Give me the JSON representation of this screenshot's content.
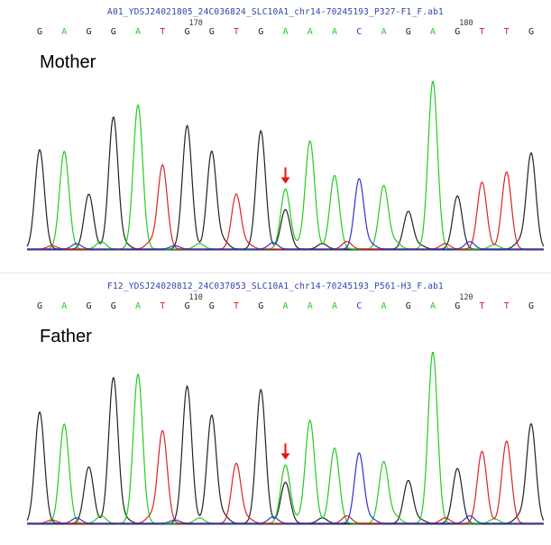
{
  "chart_data": [
    {
      "type": "line",
      "title": "A01_YDSJ24021805_24C036824_SLC10A1_chr14-70245193_P327-F1_F.ab1",
      "panel_label": "Mother",
      "bases": [
        "G",
        "A",
        "G",
        "G",
        "A",
        "T",
        "G",
        "G",
        "T",
        "G",
        "A",
        "A",
        "A",
        "C",
        "A",
        "G",
        "A",
        "G",
        "T",
        "T",
        "G"
      ],
      "position_labels": [
        {
          "index": 6,
          "text": "170"
        },
        {
          "index": 17,
          "text": "180"
        }
      ],
      "peaks": [
        {
          "base": "G",
          "height": 0.58
        },
        {
          "base": "A",
          "height": 0.57
        },
        {
          "base": "G",
          "height": 0.32
        },
        {
          "base": "G",
          "height": 0.77
        },
        {
          "base": "A",
          "height": 0.84
        },
        {
          "base": "T",
          "height": 0.49
        },
        {
          "base": "G",
          "height": 0.72
        },
        {
          "base": "G",
          "height": 0.57
        },
        {
          "base": "T",
          "height": 0.32
        },
        {
          "base": "G",
          "height": 0.69
        },
        {
          "base": "A",
          "height": 0.35,
          "secondary": {
            "base": "G",
            "height": 0.23
          }
        },
        {
          "base": "A",
          "height": 0.63
        },
        {
          "base": "A",
          "height": 0.43
        },
        {
          "base": "C",
          "height": 0.41
        },
        {
          "base": "A",
          "height": 0.37
        },
        {
          "base": "G",
          "height": 0.22
        },
        {
          "base": "A",
          "height": 0.98
        },
        {
          "base": "G",
          "height": 0.31
        },
        {
          "base": "T",
          "height": 0.39
        },
        {
          "base": "T",
          "height": 0.45
        },
        {
          "base": "G",
          "height": 0.56
        }
      ],
      "arrow_index": 10,
      "ylim": [
        0,
        1
      ]
    },
    {
      "type": "line",
      "title": "F12_YDSJ24020812_24C037053_SLC10A1_chr14-70245193_P561-H3_F.ab1",
      "panel_label": "Father",
      "bases": [
        "G",
        "A",
        "G",
        "G",
        "A",
        "T",
        "G",
        "G",
        "T",
        "G",
        "A",
        "A",
        "A",
        "C",
        "A",
        "G",
        "A",
        "G",
        "T",
        "T",
        "G"
      ],
      "position_labels": [
        {
          "index": 6,
          "text": "110"
        },
        {
          "index": 17,
          "text": "120"
        }
      ],
      "peaks": [
        {
          "base": "G",
          "height": 0.65
        },
        {
          "base": "A",
          "height": 0.58
        },
        {
          "base": "G",
          "height": 0.33
        },
        {
          "base": "G",
          "height": 0.85
        },
        {
          "base": "A",
          "height": 0.87
        },
        {
          "base": "T",
          "height": 0.54
        },
        {
          "base": "G",
          "height": 0.8
        },
        {
          "base": "G",
          "height": 0.63
        },
        {
          "base": "T",
          "height": 0.35
        },
        {
          "base": "G",
          "height": 0.78
        },
        {
          "base": "A",
          "height": 0.34,
          "secondary": {
            "base": "G",
            "height": 0.24
          }
        },
        {
          "base": "A",
          "height": 0.6
        },
        {
          "base": "A",
          "height": 0.44
        },
        {
          "base": "C",
          "height": 0.41
        },
        {
          "base": "A",
          "height": 0.36
        },
        {
          "base": "G",
          "height": 0.25
        },
        {
          "base": "A",
          "height": 1.0
        },
        {
          "base": "G",
          "height": 0.32
        },
        {
          "base": "T",
          "height": 0.42
        },
        {
          "base": "T",
          "height": 0.48
        },
        {
          "base": "G",
          "height": 0.58
        }
      ],
      "arrow_index": 10,
      "ylim": [
        0,
        1
      ]
    }
  ],
  "base_colors": {
    "A": "#22cc22",
    "C": "#3333cc",
    "G": "#222222",
    "T": "#dd2222"
  },
  "arrow_color": "#ee1111",
  "arrow_glyph": "↓"
}
